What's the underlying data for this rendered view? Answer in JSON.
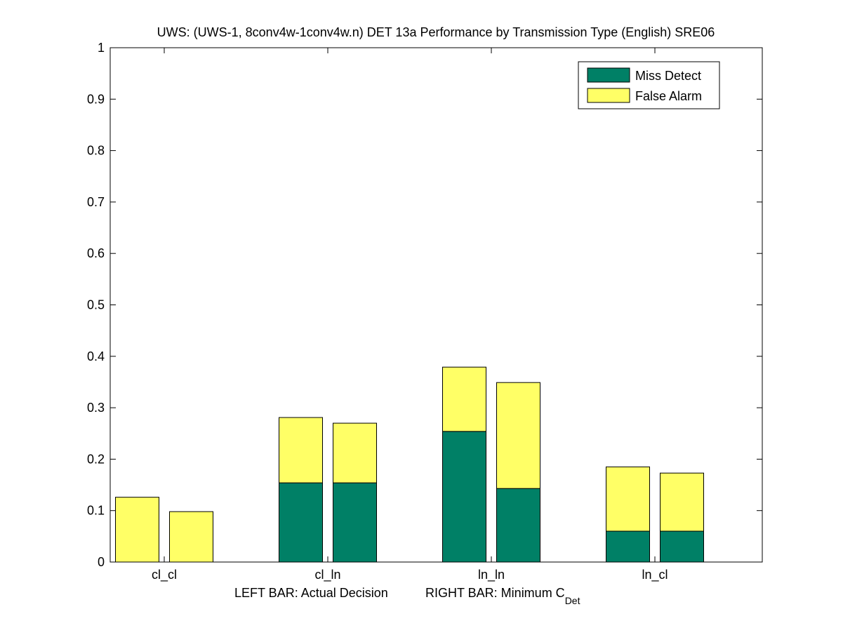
{
  "colors": {
    "miss": "#008066",
    "fa": "#ffff66",
    "axis": "#000000",
    "background": "#ffffff"
  },
  "chart_data": {
    "type": "bar",
    "stacked": true,
    "title": "UWS: (UWS-1, 8conv4w-1conv4w.n) DET 13a Performance by Transmission Type (English) SRE06",
    "xlabel": {
      "left": "LEFT BAR: Actual Decision",
      "right_prefix": "RIGHT BAR: Minimum C",
      "right_subscript": "Det"
    },
    "ylabel": "",
    "ylim": [
      0,
      1
    ],
    "yticks": [
      "0",
      "0.1",
      "0.2",
      "0.3",
      "0.4",
      "0.5",
      "0.6",
      "0.7",
      "0.8",
      "0.9",
      "1"
    ],
    "categories": [
      "cl_cl",
      "cl_ln",
      "ln_ln",
      "ln_cl"
    ],
    "legend": {
      "position": "top-right",
      "entries": [
        "Miss Detect",
        "False Alarm"
      ]
    },
    "groups": [
      {
        "category": "cl_cl",
        "actual": {
          "miss": 0.0,
          "fa": 0.126
        },
        "minimum": {
          "miss": 0.0,
          "fa": 0.098
        }
      },
      {
        "category": "cl_ln",
        "actual": {
          "miss": 0.154,
          "fa": 0.127
        },
        "minimum": {
          "miss": 0.154,
          "fa": 0.116
        }
      },
      {
        "category": "ln_ln",
        "actual": {
          "miss": 0.254,
          "fa": 0.125
        },
        "minimum": {
          "miss": 0.143,
          "fa": 0.206
        }
      },
      {
        "category": "ln_cl",
        "actual": {
          "miss": 0.06,
          "fa": 0.125
        },
        "minimum": {
          "miss": 0.06,
          "fa": 0.113
        }
      }
    ]
  }
}
